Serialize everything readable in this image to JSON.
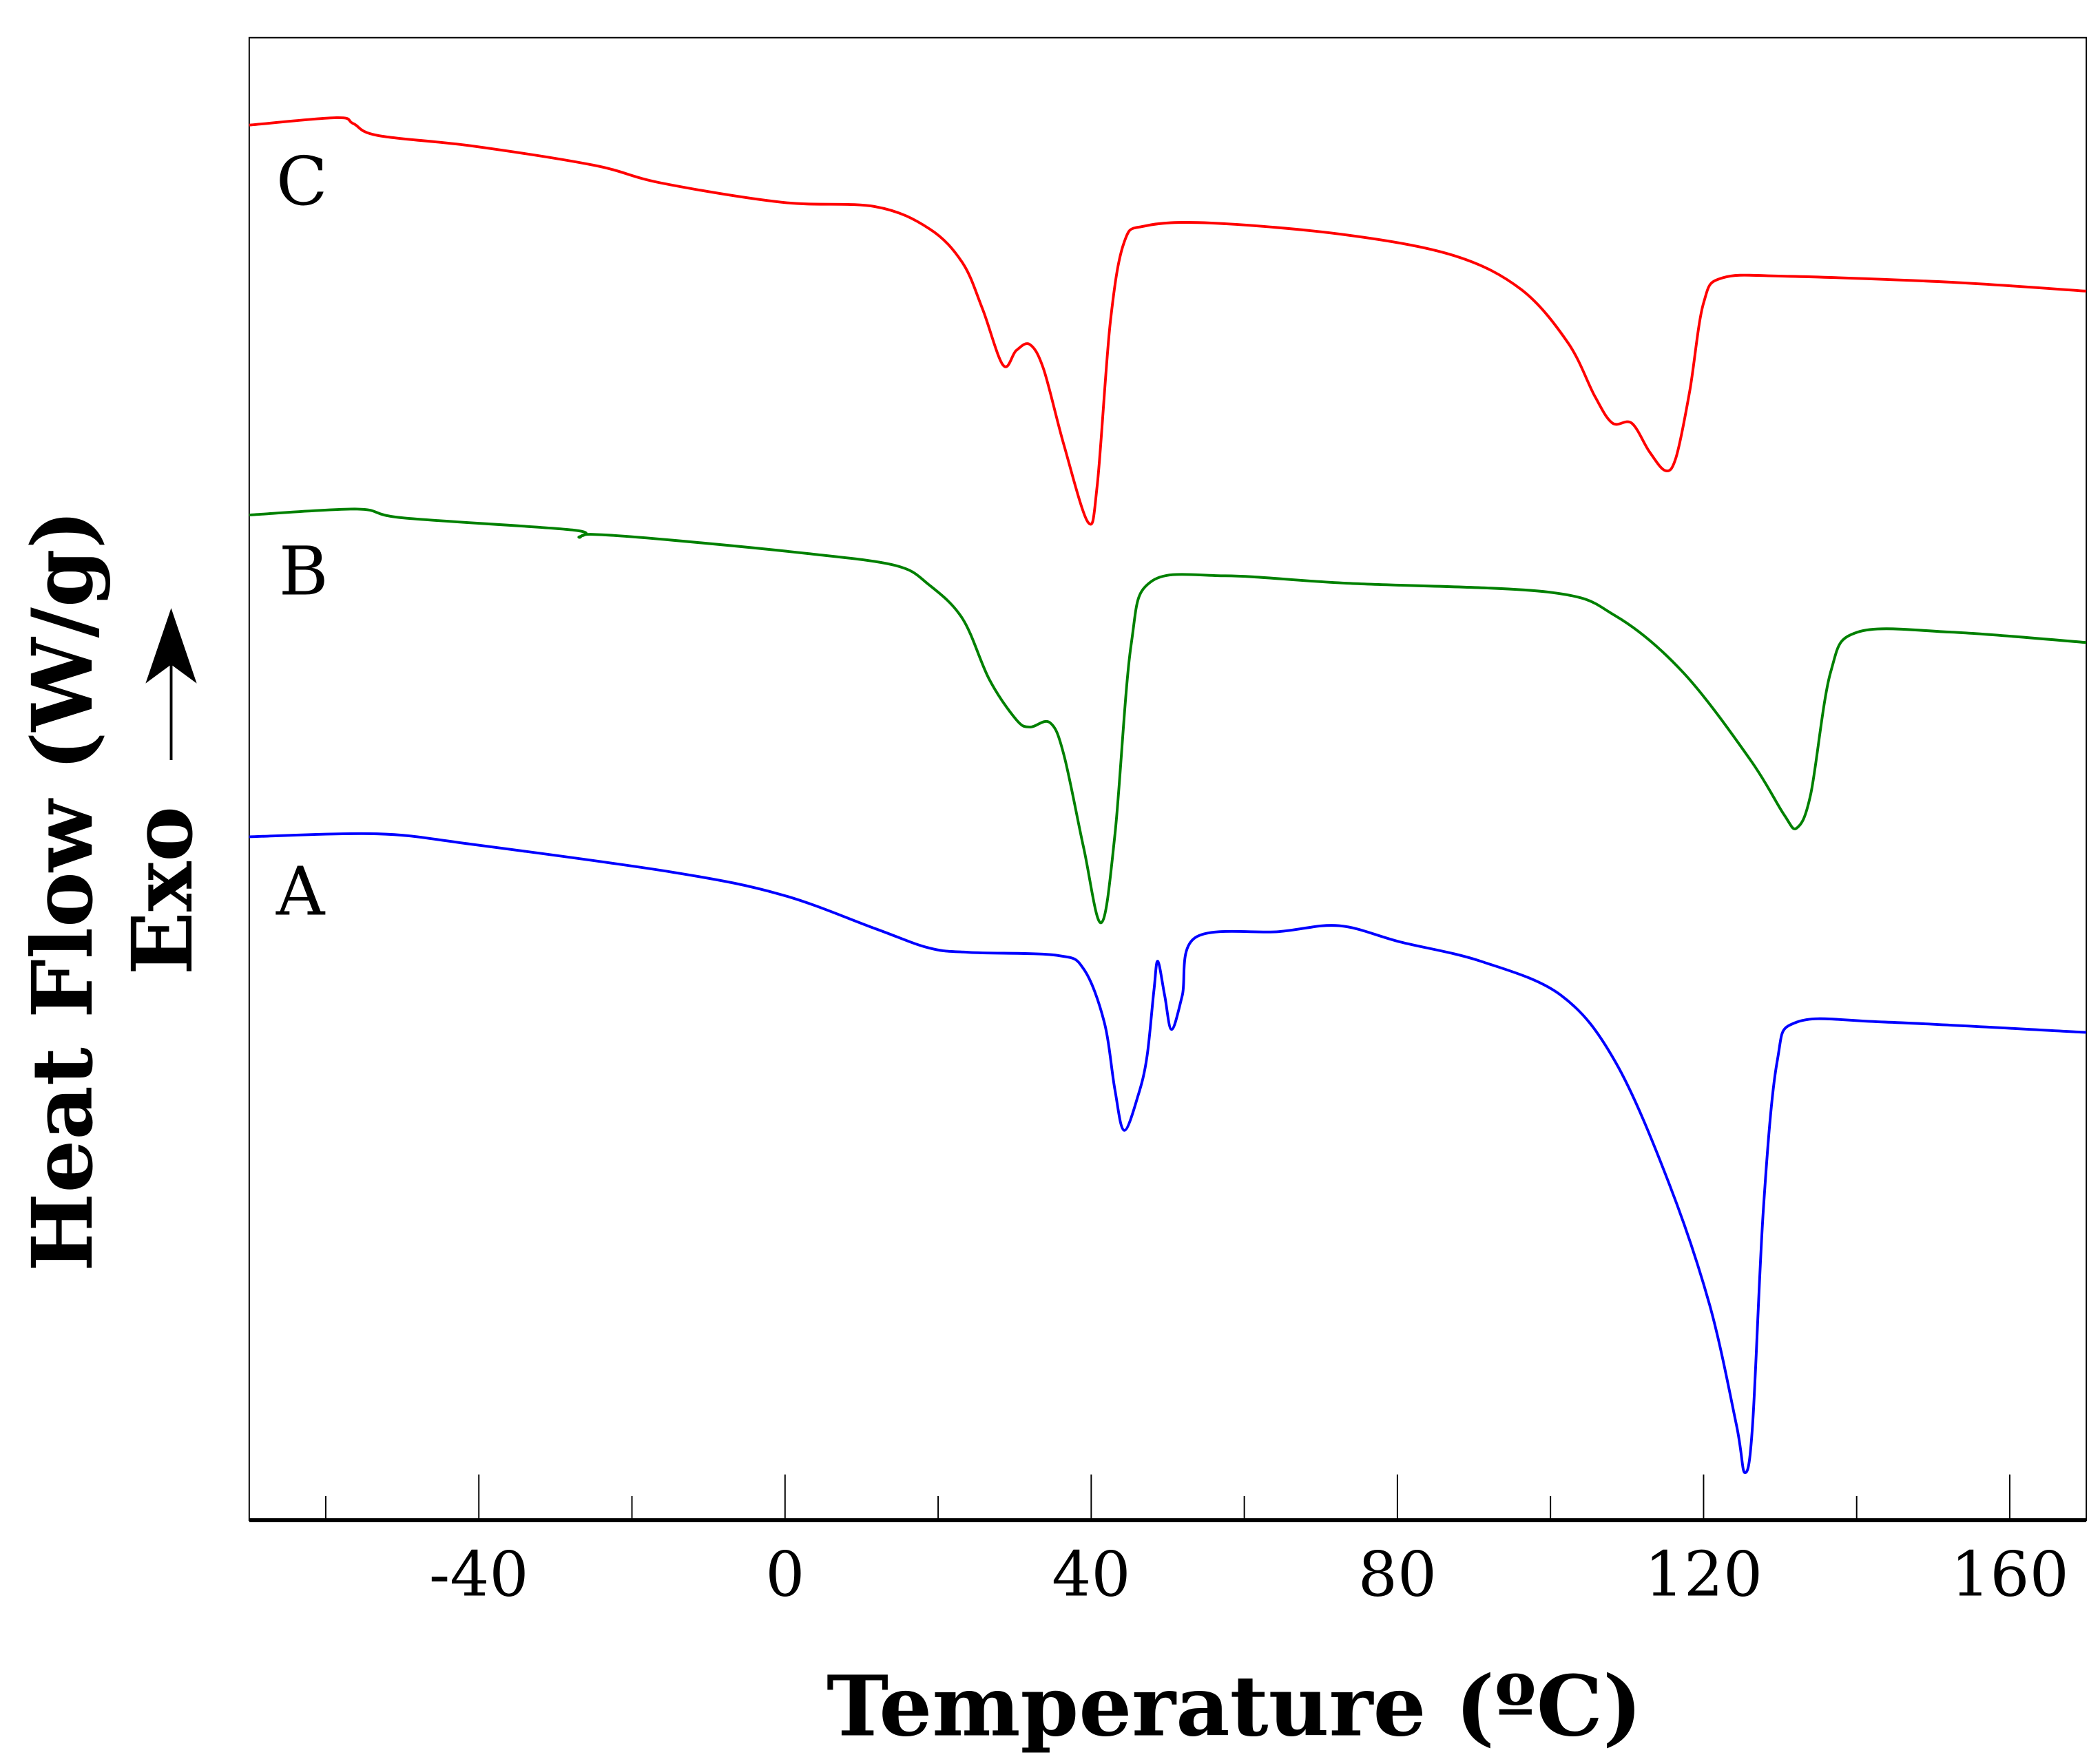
{
  "chart_data": {
    "type": "line",
    "title": "",
    "xlabel": "Temperature (ºC)",
    "ylabel": "Heat Flow (W/g)",
    "ylabel_secondary": "Exo",
    "exo_direction": "up",
    "xlim": [
      -70,
      170
    ],
    "ylim": [
      0,
      100
    ],
    "y_units": "arbitrary (no y tick labels shown)",
    "x_ticks": [
      "-40",
      "0",
      "40",
      "80",
      "120",
      "160"
    ],
    "x_minor_ticks": [
      -60,
      -20,
      20,
      60,
      100,
      140
    ],
    "grid": false,
    "series": [
      {
        "name": "C",
        "color": "#ff0000",
        "x": [
          -70,
          -58.6,
          -56.4,
          -53.2,
          -41,
          -25,
          -16.2,
          -0.5,
          11.8,
          18.9,
          23.2,
          25.8,
          28.5,
          30.2,
          32,
          33.8,
          36.4,
          39.6,
          40.8,
          42.5,
          44.3,
          47,
          55.7,
          73.3,
          87.4,
          96.2,
          102.3,
          105.8,
          108.1,
          110.6,
          112.9,
          115,
          116.4,
          118.2,
          120,
          122.5,
          131.3,
          152.4,
          170
        ],
        "y": [
          94.1,
          94.6,
          94.2,
          93.4,
          92.7,
          91.4,
          90.2,
          88.9,
          88.6,
          87.1,
          84.8,
          81.7,
          77.9,
          78.9,
          79.3,
          77.6,
          72.6,
          67.3,
          69.9,
          80.8,
          86.2,
          87.3,
          87.5,
          86.7,
          85.3,
          83.0,
          79.4,
          75.8,
          74.0,
          74.0,
          72.1,
          70.8,
          71.7,
          76.2,
          82.1,
          83.8,
          83.9,
          83.5,
          82.9
        ]
      },
      {
        "name": "B",
        "color": "#008000",
        "x": [
          -70,
          -55.9,
          -49.8,
          -27.8,
          -26.9,
          -25.1,
          -14.6,
          3,
          14.4,
          18.8,
          23.2,
          26.7,
          30.2,
          32,
          34.6,
          36.4,
          39,
          41.3,
          43.1,
          45.2,
          47.8,
          57.5,
          73.3,
          99.7,
          108.5,
          117.3,
          126.1,
          130.5,
          132.2,
          134,
          136.6,
          140.1,
          152.4,
          170
        ],
        "y": [
          67.8,
          68.2,
          67.6,
          66.8,
          66.3,
          66.5,
          66.1,
          65.2,
          64.4,
          63.1,
          60.8,
          56.7,
          54.0,
          53.5,
          53.8,
          51.7,
          45.4,
          40.3,
          46.3,
          59.0,
          63.3,
          63.7,
          63.2,
          62.6,
          61.0,
          57.2,
          51.3,
          47.6,
          46.7,
          49.0,
          57.2,
          59.9,
          59.9,
          59.2
        ]
      },
      {
        "name": "A",
        "color": "#0000ff",
        "x": [
          -70,
          -53.3,
          -41,
          -14.6,
          -0.5,
          11.8,
          18.8,
          24.1,
          35.5,
          39,
          41.7,
          43.1,
          44.3,
          46.1,
          47.3,
          48.2,
          48.7,
          49.6,
          50.5,
          51.9,
          53.6,
          64.5,
          72.4,
          80.4,
          90.9,
          101.4,
          108.5,
          115.5,
          120.8,
          124.3,
          125.4,
          126.4,
          127.8,
          129.6,
          132.2,
          143.7,
          170
        ],
        "y": [
          46.1,
          46.3,
          45.6,
          43.7,
          42.2,
          39.9,
          38.6,
          38.3,
          38.1,
          37.2,
          33.6,
          29.0,
          26.3,
          28.6,
          31.3,
          35.8,
          37.7,
          35.4,
          33.1,
          35.4,
          39.3,
          39.7,
          40.1,
          39.0,
          37.7,
          35.4,
          30.9,
          22.7,
          14.5,
          6.4,
          3.2,
          6.4,
          20.9,
          30.9,
          33.6,
          33.6,
          32.9
        ]
      }
    ],
    "annotations": [
      "A",
      "B",
      "C"
    ]
  }
}
